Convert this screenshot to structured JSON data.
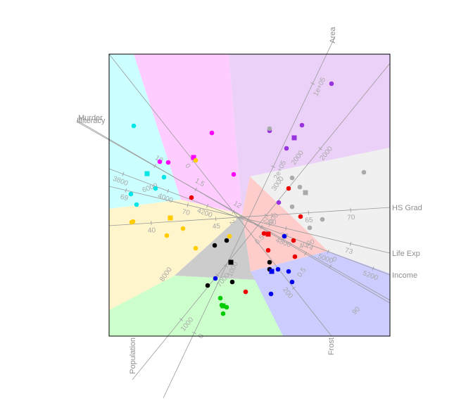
{
  "chart_data": {
    "type": "scatter",
    "title": "",
    "legend": "none",
    "regions": [
      {
        "color": "#ccffff"
      },
      {
        "color": "#ffccff"
      },
      {
        "color": "#ebd1f7"
      },
      {
        "color": "#f0f0f0"
      },
      {
        "color": "#fff5cc"
      },
      {
        "color": "#ffcccc"
      },
      {
        "color": "#cccccc"
      },
      {
        "color": "#ccffcc"
      },
      {
        "color": "#ccccff"
      }
    ],
    "groups": [
      {
        "color": "#00e5e5",
        "points": [
          [
            190,
            179
          ],
          [
            233,
            252
          ],
          [
            221,
            268
          ],
          [
            194,
            291
          ],
          [
            186,
            276
          ]
        ],
        "center": [
          209,
          247
        ]
      },
      {
        "color": "#ff00ff",
        "points": [
          [
            301,
            189
          ],
          [
            239,
            231
          ],
          [
            227,
            230
          ],
          [
            332,
            248
          ]
        ],
        "center": [
          275,
          224
        ]
      },
      {
        "color": "#9933dd",
        "points": [
          [
            471,
            119
          ],
          [
            383,
            186
          ],
          [
            429,
            178
          ],
          [
            407,
            211
          ],
          [
            396,
            288
          ]
        ],
        "center": [
          418,
          196
        ]
      },
      {
        "color": "#aaaaaa",
        "points": [
          [
            517,
            245
          ],
          [
            415,
            253
          ],
          [
            426,
            266
          ],
          [
            415,
            294
          ],
          [
            440,
            324
          ],
          [
            458,
            312
          ],
          [
            383,
            183
          ]
        ],
        "center": [
          434,
          274
        ]
      },
      {
        "color": "#ffcc00",
        "points": [
          [
            187,
            316
          ],
          [
            189,
            315
          ],
          [
            260,
            325
          ],
          [
            237,
            335
          ],
          [
            278,
            353
          ],
          [
            326,
            336
          ],
          [
            278,
            228
          ]
        ],
        "center": [
          242,
          310
        ]
      },
      {
        "color": "#ee0000",
        "points": [
          [
            272,
            281
          ],
          [
            410,
            268
          ],
          [
            427,
            308
          ],
          [
            417,
            342
          ],
          [
            381,
            356
          ],
          [
            419,
            365
          ],
          [
            349,
            415
          ],
          [
            375,
            332
          ]
        ],
        "center": [
          381,
          333
        ]
      },
      {
        "color": "#000000",
        "points": [
          [
            305,
            349
          ],
          [
            322,
            342
          ],
          [
            383,
            373
          ],
          [
            383,
            383
          ],
          [
            330,
            401
          ],
          [
            295,
            406
          ]
        ],
        "center": [
          328,
          373
        ]
      },
      {
        "color": "#00cc00",
        "points": [
          [
            313,
            424
          ],
          [
            322,
            437
          ],
          [
            315,
            434
          ],
          [
            317,
            446
          ]
        ],
        "center": [
          317,
          435
        ]
      },
      {
        "color": "#0000ee",
        "points": [
          [
            404,
            336
          ],
          [
            395,
            383
          ],
          [
            410,
            386
          ],
          [
            415,
            401
          ],
          [
            385,
            418
          ],
          [
            306,
            396
          ]
        ],
        "center": [
          386,
          386
        ]
      }
    ],
    "axes": [
      {
        "name": "Area",
        "ticks": [
          {
            "label": "0",
            "t": 0.18
          },
          {
            "label": "1000",
            "t": 0.365
          },
          {
            "label": "2e+05",
            "t": 0.64
          },
          {
            "label": "1e+05",
            "t": 0.87
          }
        ]
      },
      {
        "name": "Murder",
        "ticks": [
          {
            "label": "14",
            "t": 0.27
          },
          {
            "label": "12",
            "t": 0.5
          },
          {
            "label": "10",
            "t": 0.75
          }
        ]
      },
      {
        "name": "Illiteracy",
        "ticks": [
          {
            "label": "0",
            "t": 0.19
          },
          {
            "label": "2",
            "t": 0.41
          },
          {
            "label": "1.5",
            "t": 0.62
          }
        ]
      },
      {
        "name": "HS Grad",
        "ticks": [
          {
            "label": "40",
            "t": 0.15
          },
          {
            "label": "45",
            "t": 0.38
          },
          {
            "label": "60",
            "t": 0.58
          },
          {
            "label": "65",
            "t": 0.71
          },
          {
            "label": "70",
            "t": 0.86
          }
        ]
      },
      {
        "name": "Life Exp",
        "ticks": [
          {
            "label": "69",
            "t": 0.06
          },
          {
            "label": "70",
            "t": 0.28
          },
          {
            "label": "72",
            "t": 0.63
          },
          {
            "label": "73",
            "t": 0.86
          }
        ]
      },
      {
        "name": "Income",
        "ticks": [
          {
            "label": "3800",
            "t": 0.05
          },
          {
            "label": "4000",
            "t": 0.21
          },
          {
            "label": "4200",
            "t": 0.35
          },
          {
            "label": "4800",
            "t": 0.63
          },
          {
            "label": "5000",
            "t": 0.78
          },
          {
            "label": "5200",
            "t": 0.94
          }
        ]
      },
      {
        "name": "Frost",
        "ticks": [
          {
            "label": "0",
            "t": 0.38
          },
          {
            "label": "2",
            "t": 0.58
          },
          {
            "label": "200",
            "t": 0.83
          }
        ]
      },
      {
        "name": "Population",
        "ticks": [
          {
            "label": "1000",
            "t": 0.19
          },
          {
            "label": "7000",
            "t": 0.33
          },
          {
            "label": "3000",
            "t": 0.52
          },
          {
            "label": "2000",
            "t": 0.73
          }
        ]
      }
    ],
    "extra_labels": [
      "8000",
      "0.5",
      "0.5",
      "3000",
      "2000",
      "90",
      "4000",
      "6000"
    ]
  }
}
